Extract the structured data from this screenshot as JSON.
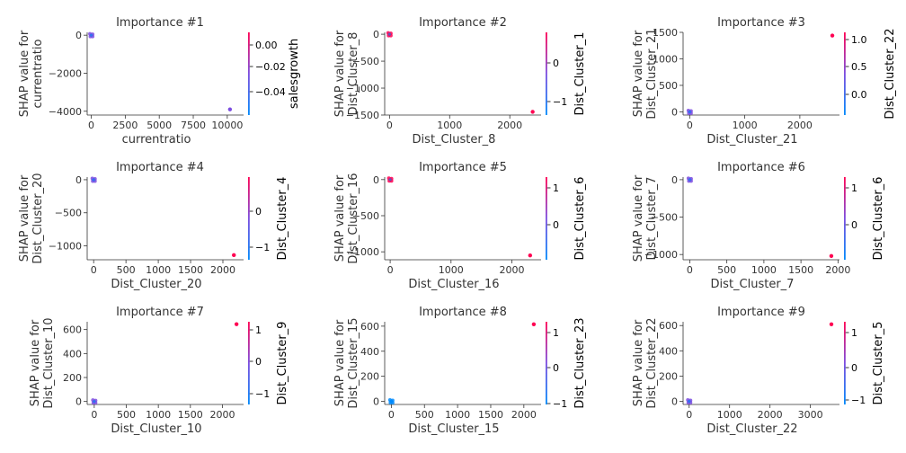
{
  "chart_data": [
    {
      "type": "scatter",
      "title": "Importance #1",
      "xlabel": "currentratio",
      "ylabel": [
        "SHAP value for",
        "currentratio"
      ],
      "xlim": [
        -300,
        11200
      ],
      "ylim": [
        -4200,
        150
      ],
      "xticks": [
        0,
        2500,
        5000,
        7500,
        10000
      ],
      "xtick_labels": [
        "0",
        "2500",
        "5000",
        "7500",
        "10000"
      ],
      "yticks": [
        0,
        -2000,
        -4000
      ],
      "ytick_labels": [
        "0",
        "−2000",
        "−4000"
      ],
      "points": [
        {
          "x": 0,
          "y": 0,
          "c": "cluster"
        },
        {
          "x": 10200,
          "y": -3900,
          "c": "mid"
        }
      ],
      "colorbar": {
        "label": "salesgrowth",
        "ticks": [
          "0.00",
          "−0.02",
          "−0.04"
        ]
      }
    },
    {
      "type": "scatter",
      "title": "Importance #2",
      "xlabel": "Dist_Cluster_8",
      "ylabel": [
        "SHAP value for",
        "Dist_Cluster_8"
      ],
      "xlim": [
        -80,
        2520
      ],
      "ylim": [
        -1500,
        35
      ],
      "xticks": [
        0,
        1000,
        2000
      ],
      "xtick_labels": [
        "0",
        "1000",
        "2000"
      ],
      "yticks": [
        0,
        -500,
        -1000,
        -1500
      ],
      "ytick_labels": [
        "0",
        "−500",
        "−1000",
        "−1500"
      ],
      "points": [
        {
          "x": 0,
          "y": 0,
          "c": "cluster-red"
        },
        {
          "x": 2380,
          "y": -1440,
          "c": "high"
        }
      ],
      "colorbar": {
        "label": "Dist_Cluster_1",
        "ticks": [
          "0",
          "−1"
        ]
      }
    },
    {
      "type": "scatter",
      "title": "Importance #3",
      "xlabel": "Dist_Cluster_21",
      "ylabel": [
        "SHAP value for",
        "Dist_Cluster_21"
      ],
      "xlim": [
        -120,
        2720
      ],
      "ylim": [
        -60,
        1500
      ],
      "xticks": [
        0,
        1000,
        2000
      ],
      "xtick_labels": [
        "0",
        "1000",
        "2000"
      ],
      "yticks": [
        0,
        500,
        1000,
        1500
      ],
      "ytick_labels": [
        "0",
        "500",
        "1000",
        "1500"
      ],
      "points": [
        {
          "x": 0,
          "y": 0,
          "c": "cluster"
        },
        {
          "x": 2590,
          "y": 1440,
          "c": "high"
        }
      ],
      "colorbar": {
        "label": "Dist_Cluster_22",
        "ticks": [
          "1.0",
          "0.5",
          "0.0"
        ]
      }
    },
    {
      "type": "scatter",
      "title": "Importance #4",
      "xlabel": "Dist_Cluster_20",
      "ylabel": [
        "SHAP value for",
        "Dist_Cluster_20"
      ],
      "xlim": [
        -100,
        2320
      ],
      "ylim": [
        -1210,
        40
      ],
      "xticks": [
        0,
        500,
        1000,
        1500,
        2000
      ],
      "xtick_labels": [
        "0",
        "500",
        "1000",
        "1500",
        "2000"
      ],
      "yticks": [
        0,
        -500,
        -1000
      ],
      "ytick_labels": [
        "0",
        "−500",
        "−1000"
      ],
      "points": [
        {
          "x": 0,
          "y": 0,
          "c": "cluster"
        },
        {
          "x": 2170,
          "y": -1140,
          "c": "high"
        }
      ],
      "colorbar": {
        "label": "Dist_Cluster_4",
        "ticks": [
          "0",
          "−1"
        ]
      }
    },
    {
      "type": "scatter",
      "title": "Importance #5",
      "xlabel": "Dist_Cluster_16",
      "ylabel": [
        "SHAP value for",
        "Dist_Cluster_16"
      ],
      "xlim": [
        -90,
        2480
      ],
      "ylim": [
        -1110,
        35
      ],
      "xticks": [
        0,
        1000,
        2000
      ],
      "xtick_labels": [
        "0",
        "1000",
        "2000"
      ],
      "yticks": [
        0,
        -500,
        -1000
      ],
      "ytick_labels": [
        "0",
        "−500",
        "−1000"
      ],
      "points": [
        {
          "x": 0,
          "y": 0,
          "c": "cluster-red"
        },
        {
          "x": 2300,
          "y": -1050,
          "c": "high"
        }
      ],
      "colorbar": {
        "label": "Dist_Cluster_6",
        "ticks": [
          "1",
          "0"
        ]
      }
    },
    {
      "type": "scatter",
      "title": "Importance #6",
      "xlabel": "Dist_Cluster_7",
      "ylabel": [
        "SHAP value for",
        "Dist_Cluster_7"
      ],
      "xlim": [
        -90,
        2020
      ],
      "ylim": [
        -1070,
        35
      ],
      "xticks": [
        0,
        500,
        1000,
        1500,
        2000
      ],
      "xtick_labels": [
        "0",
        "500",
        "1000",
        "1500",
        "2000"
      ],
      "yticks": [
        0,
        -500,
        -1000
      ],
      "ytick_labels": [
        "0",
        "−500",
        "−1000"
      ],
      "points": [
        {
          "x": 0,
          "y": 0,
          "c": "cluster"
        },
        {
          "x": 1910,
          "y": -1020,
          "c": "high"
        }
      ],
      "colorbar": {
        "label": "Dist_Cluster_6",
        "ticks": [
          "1",
          "0"
        ]
      }
    },
    {
      "type": "scatter",
      "title": "Importance #7",
      "xlabel": "Dist_Cluster_10",
      "ylabel": [
        "SHAP value for",
        "Dist_Cluster_10"
      ],
      "xlim": [
        -110,
        2330
      ],
      "ylim": [
        -25,
        665
      ],
      "xticks": [
        0,
        500,
        1000,
        1500,
        2000
      ],
      "xtick_labels": [
        "0",
        "500",
        "1000",
        "1500",
        "2000"
      ],
      "yticks": [
        0,
        200,
        400,
        600
      ],
      "ytick_labels": [
        "0",
        "200",
        "400",
        "600"
      ],
      "points": [
        {
          "x": 0,
          "y": 0,
          "c": "cluster"
        },
        {
          "x": 2220,
          "y": 645,
          "c": "high"
        }
      ],
      "colorbar": {
        "label": "Dist_Cluster_9",
        "ticks": [
          "1",
          "0",
          "−1"
        ]
      }
    },
    {
      "type": "scatter",
      "title": "Importance #8",
      "xlabel": "Dist_Cluster_15",
      "ylabel": [
        "SHAP value for",
        "Dist_Cluster_15"
      ],
      "xlim": [
        -100,
        2260
      ],
      "ylim": [
        -25,
        635
      ],
      "xticks": [
        0,
        500,
        1000,
        1500,
        2000
      ],
      "xtick_labels": [
        "0",
        "500",
        "1000",
        "1500",
        "2000"
      ],
      "yticks": [
        0,
        200,
        400,
        600
      ],
      "ytick_labels": [
        "0",
        "200",
        "400",
        "600"
      ],
      "points": [
        {
          "x": 0,
          "y": 0,
          "c": "cluster-blue"
        },
        {
          "x": 2150,
          "y": 615,
          "c": "high"
        }
      ],
      "colorbar": {
        "label": "Dist_Cluster_23",
        "ticks": [
          "1",
          "0",
          "−1"
        ]
      }
    },
    {
      "type": "scatter",
      "title": "Importance #9",
      "xlabel": "Dist_Cluster_22",
      "ylabel": [
        "SHAP value for",
        "Dist_Cluster_22"
      ],
      "xlim": [
        -150,
        3720
      ],
      "ylim": [
        -25,
        630
      ],
      "xticks": [
        0,
        1000,
        2000,
        3000
      ],
      "xtick_labels": [
        "0",
        "1000",
        "2000",
        "3000"
      ],
      "yticks": [
        0,
        200,
        400,
        600
      ],
      "ytick_labels": [
        "0",
        "200",
        "400",
        "600"
      ],
      "points": [
        {
          "x": 0,
          "y": 0,
          "c": "cluster"
        },
        {
          "x": 3520,
          "y": 610,
          "c": "high"
        }
      ],
      "colorbar": {
        "label": "Dist_Cluster_5",
        "ticks": [
          "1",
          "0",
          "−1"
        ]
      }
    }
  ],
  "colors": {
    "low": "#008afb",
    "mid": "#7b4de0",
    "high": "#ff0052",
    "axis": "#333333"
  }
}
